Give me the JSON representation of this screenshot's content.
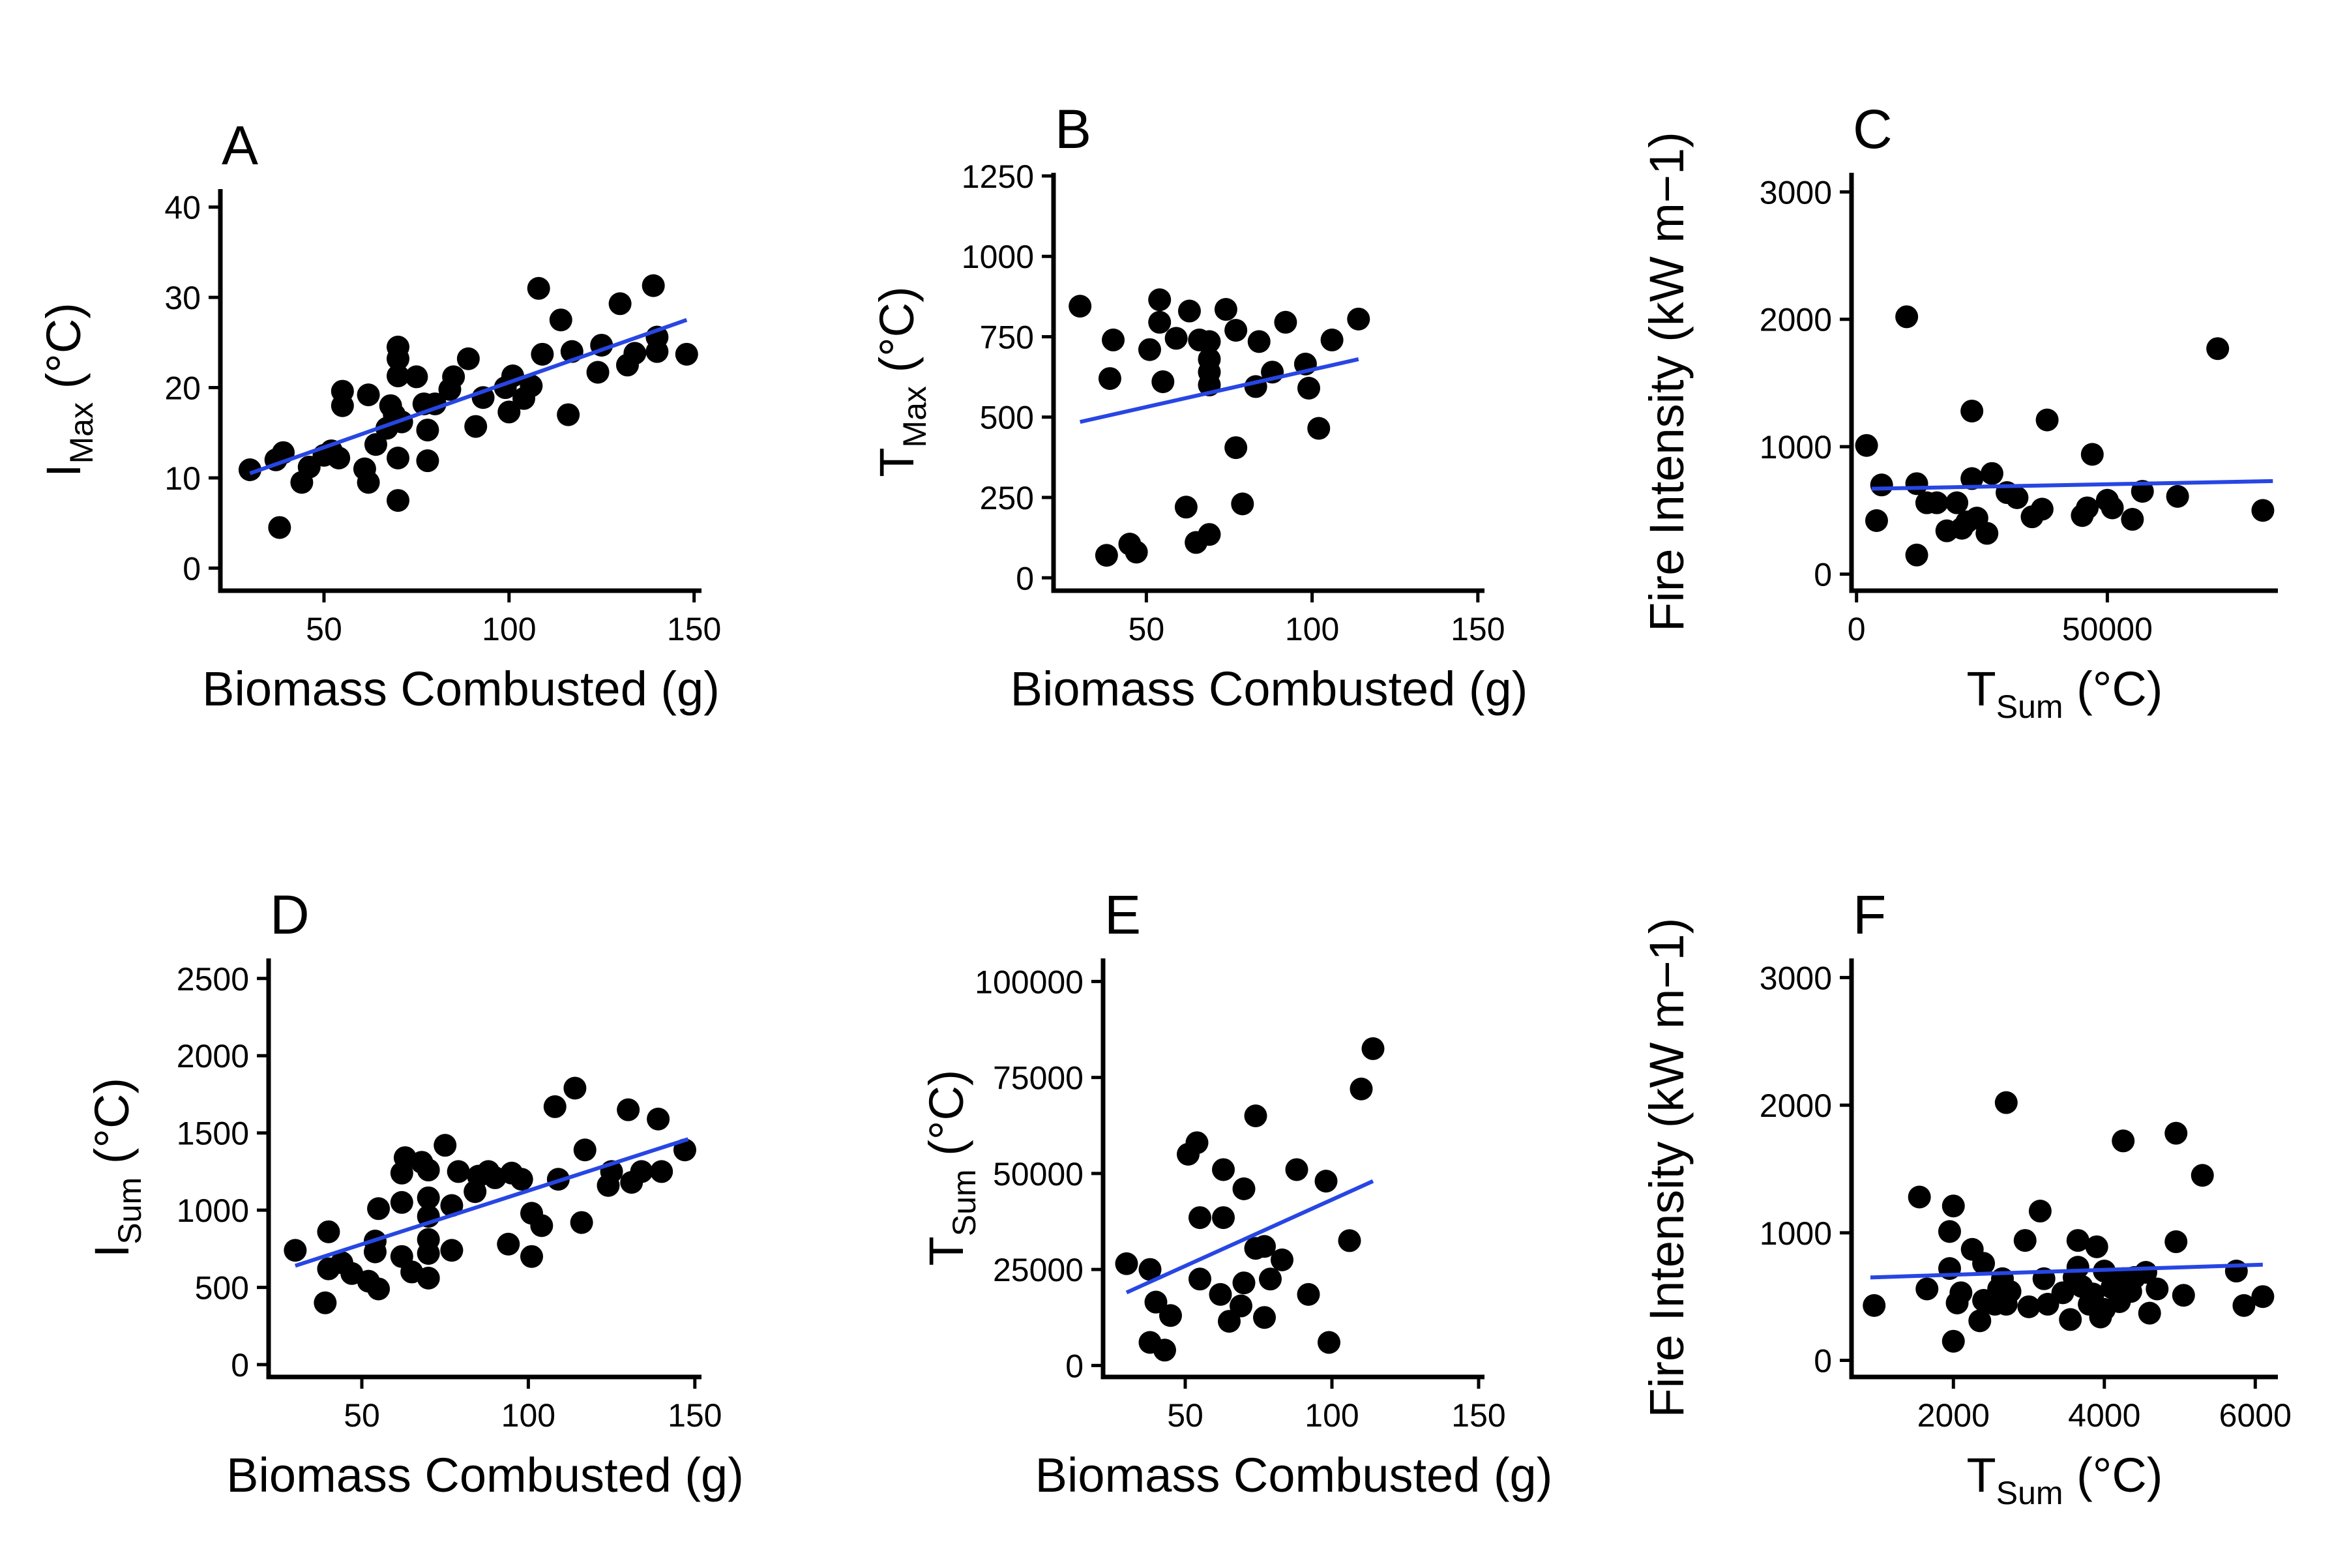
{
  "colors": {
    "points": "#000000",
    "fit_line": "#2746e3",
    "axis": "#000000"
  },
  "chart_data": [
    {
      "panel": "A",
      "type": "scatter",
      "xlabel": "Biomass Combusted (g)",
      "ylabel": {
        "main": "I",
        "sub": "Max",
        "unit": " (°C)"
      },
      "xlim": [
        22,
        152
      ],
      "ylim": [
        -2.5,
        42
      ],
      "xticks": [
        50,
        100,
        150
      ],
      "yticks": [
        0,
        10,
        20,
        30,
        40
      ],
      "fit": [
        [
          30,
          10.5
        ],
        [
          148,
          27.5
        ]
      ],
      "points": [
        [
          30,
          10.9
        ],
        [
          37,
          12
        ],
        [
          38,
          4.5
        ],
        [
          39,
          12.8
        ],
        [
          44,
          9.5
        ],
        [
          46,
          11.2
        ],
        [
          50,
          12.5
        ],
        [
          52,
          13
        ],
        [
          54,
          12.2
        ],
        [
          55,
          18
        ],
        [
          55,
          19.6
        ],
        [
          61,
          11
        ],
        [
          62,
          9.5
        ],
        [
          62,
          19.2
        ],
        [
          64,
          13.7
        ],
        [
          67,
          15.5
        ],
        [
          68,
          18
        ],
        [
          69,
          17
        ],
        [
          70,
          7.5
        ],
        [
          70,
          12.2
        ],
        [
          70,
          21.3
        ],
        [
          70,
          23.2
        ],
        [
          70,
          24.5
        ],
        [
          71,
          16.2
        ],
        [
          75,
          21.2
        ],
        [
          77,
          18.2
        ],
        [
          78,
          11.9
        ],
        [
          78,
          15.3
        ],
        [
          80,
          18.2
        ],
        [
          84,
          19.8
        ],
        [
          85,
          21.2
        ],
        [
          89,
          23.2
        ],
        [
          91,
          15.7
        ],
        [
          93,
          18.9
        ],
        [
          99,
          20
        ],
        [
          100,
          17.3
        ],
        [
          101,
          21.3
        ],
        [
          104,
          18.8
        ],
        [
          106,
          20.2
        ],
        [
          108,
          31
        ],
        [
          109,
          23.7
        ],
        [
          114,
          27.5
        ],
        [
          116,
          17
        ],
        [
          117,
          24
        ],
        [
          124,
          21.7
        ],
        [
          125,
          24.7
        ],
        [
          130,
          29.3
        ],
        [
          132,
          22.5
        ],
        [
          134,
          23.8
        ],
        [
          139,
          31.3
        ],
        [
          140,
          24
        ],
        [
          140,
          25.6
        ],
        [
          148,
          23.7
        ]
      ]
    },
    {
      "panel": "B",
      "type": "scatter",
      "xlabel": "Biomass Combusted (g)",
      "ylabel": {
        "main": "T",
        "sub": "Max",
        "unit": " (°C)"
      },
      "xlim": [
        22,
        152
      ],
      "ylim": [
        -40,
        1260
      ],
      "xticks": [
        50,
        100,
        150
      ],
      "yticks": [
        0,
        250,
        500,
        750,
        1000,
        1250
      ],
      "fit": [
        [
          30,
          485
        ],
        [
          114,
          680
        ]
      ],
      "points": [
        [
          30,
          845
        ],
        [
          38,
          70
        ],
        [
          39,
          620
        ],
        [
          40,
          740
        ],
        [
          45,
          105
        ],
        [
          47,
          80
        ],
        [
          51,
          710
        ],
        [
          54,
          795
        ],
        [
          54,
          865
        ],
        [
          55,
          610
        ],
        [
          59,
          745
        ],
        [
          62,
          220
        ],
        [
          63,
          830
        ],
        [
          65,
          110
        ],
        [
          66,
          740
        ],
        [
          69,
          135
        ],
        [
          69,
          600
        ],
        [
          69,
          640
        ],
        [
          69,
          680
        ],
        [
          69,
          735
        ],
        [
          74,
          835
        ],
        [
          77,
          405
        ],
        [
          77,
          770
        ],
        [
          79,
          230
        ],
        [
          83,
          595
        ],
        [
          84,
          735
        ],
        [
          88,
          640
        ],
        [
          92,
          795
        ],
        [
          98,
          665
        ],
        [
          99,
          590
        ],
        [
          102,
          465
        ],
        [
          106,
          740
        ],
        [
          114,
          805
        ]
      ]
    },
    {
      "panel": "C",
      "type": "scatter",
      "xlabel": {
        "main": "T",
        "sub": "Sum",
        "unit": " (°C)"
      },
      "ylabel": "Fire Intensity (kW m−1)",
      "xlim": [
        -1000,
        84000
      ],
      "ylim": [
        -130,
        3150
      ],
      "xticks": [
        0,
        50000
      ],
      "yticks": [
        0,
        1000,
        2000,
        3000
      ],
      "fit": [
        [
          3000,
          670
        ],
        [
          83000,
          730
        ]
      ],
      "points": [
        [
          2000,
          1010
        ],
        [
          4000,
          420
        ],
        [
          5000,
          700
        ],
        [
          10000,
          2020
        ],
        [
          12000,
          150
        ],
        [
          12000,
          710
        ],
        [
          14000,
          560
        ],
        [
          16000,
          560
        ],
        [
          18000,
          340
        ],
        [
          20000,
          560
        ],
        [
          21000,
          360
        ],
        [
          22000,
          410
        ],
        [
          23000,
          750
        ],
        [
          23000,
          1280
        ],
        [
          24000,
          440
        ],
        [
          26000,
          320
        ],
        [
          27000,
          790
        ],
        [
          30000,
          640
        ],
        [
          32000,
          600
        ],
        [
          35000,
          450
        ],
        [
          37000,
          510
        ],
        [
          38000,
          1210
        ],
        [
          45000,
          460
        ],
        [
          46000,
          520
        ],
        [
          47000,
          940
        ],
        [
          50000,
          580
        ],
        [
          51000,
          520
        ],
        [
          55000,
          430
        ],
        [
          57000,
          650
        ],
        [
          64000,
          610
        ],
        [
          72000,
          1770
        ],
        [
          81000,
          500
        ]
      ]
    },
    {
      "panel": "D",
      "type": "scatter",
      "xlabel": "Biomass Combusted (g)",
      "ylabel": {
        "main": "I",
        "sub": "Sum",
        "unit": " (°C)"
      },
      "xlim": [
        22,
        152
      ],
      "ylim": [
        -80,
        2630
      ],
      "xticks": [
        50,
        100,
        150
      ],
      "yticks": [
        0,
        500,
        1000,
        1500,
        2000,
        2500
      ],
      "fit": [
        [
          30,
          640
        ],
        [
          148,
          1460
        ]
      ],
      "points": [
        [
          30,
          740
        ],
        [
          39,
          400
        ],
        [
          40,
          620
        ],
        [
          40,
          860
        ],
        [
          44,
          660
        ],
        [
          47,
          590
        ],
        [
          52,
          540
        ],
        [
          54,
          730
        ],
        [
          54,
          800
        ],
        [
          55,
          490
        ],
        [
          55,
          1010
        ],
        [
          62,
          700
        ],
        [
          62,
          1050
        ],
        [
          62,
          1240
        ],
        [
          63,
          1340
        ],
        [
          65,
          600
        ],
        [
          68,
          1310
        ],
        [
          70,
          560
        ],
        [
          70,
          720
        ],
        [
          70,
          810
        ],
        [
          70,
          960
        ],
        [
          70,
          1080
        ],
        [
          70,
          1260
        ],
        [
          75,
          1420
        ],
        [
          77,
          740
        ],
        [
          77,
          1030
        ],
        [
          79,
          1250
        ],
        [
          84,
          1120
        ],
        [
          85,
          1220
        ],
        [
          88,
          1250
        ],
        [
          90,
          1210
        ],
        [
          94,
          780
        ],
        [
          95,
          1240
        ],
        [
          98,
          1200
        ],
        [
          101,
          700
        ],
        [
          101,
          980
        ],
        [
          104,
          900
        ],
        [
          108,
          1670
        ],
        [
          109,
          1200
        ],
        [
          114,
          1790
        ],
        [
          116,
          920
        ],
        [
          117,
          1390
        ],
        [
          124,
          1160
        ],
        [
          125,
          1250
        ],
        [
          130,
          1650
        ],
        [
          131,
          1180
        ],
        [
          134,
          1250
        ],
        [
          139,
          1590
        ],
        [
          140,
          1250
        ],
        [
          147,
          1390
        ]
      ]
    },
    {
      "panel": "E",
      "type": "scatter",
      "xlabel": "Biomass Combusted (g)",
      "ylabel": {
        "main": "T",
        "sub": "Sum",
        "unit": " (°C)"
      },
      "xlim": [
        22,
        152
      ],
      "ylim": [
        -3000,
        106000
      ],
      "xticks": [
        50,
        100,
        150
      ],
      "yticks": [
        0,
        25000,
        50000,
        75000,
        100000
      ],
      "fit": [
        [
          30,
          19000
        ],
        [
          114,
          48000
        ]
      ],
      "points": [
        [
          30,
          26500
        ],
        [
          38,
          25000
        ],
        [
          38,
          6000
        ],
        [
          40,
          16500
        ],
        [
          43,
          4000
        ],
        [
          45,
          13000
        ],
        [
          51,
          55000
        ],
        [
          54,
          58000
        ],
        [
          55,
          22500
        ],
        [
          55,
          38500
        ],
        [
          62,
          18500
        ],
        [
          63,
          38500
        ],
        [
          63,
          51000
        ],
        [
          65,
          11500
        ],
        [
          69,
          15500
        ],
        [
          70,
          21500
        ],
        [
          70,
          46000
        ],
        [
          74,
          30500
        ],
        [
          74,
          65000
        ],
        [
          77,
          12500
        ],
        [
          77,
          31000
        ],
        [
          79,
          22500
        ],
        [
          83,
          27500
        ],
        [
          88,
          51000
        ],
        [
          92,
          18500
        ],
        [
          98,
          48000
        ],
        [
          99,
          6000
        ],
        [
          106,
          32500
        ],
        [
          110,
          72000
        ],
        [
          114,
          82500
        ]
      ]
    },
    {
      "panel": "F",
      "type": "scatter",
      "xlabel": {
        "main": "T",
        "sub": "Sum",
        "unit": " (°C)"
      },
      "ylabel": "Fire Intensity (kW m−1)",
      "xlim": [
        650,
        6300
      ],
      "ylim": [
        -130,
        3150
      ],
      "xticks": [
        2000,
        4000,
        6000
      ],
      "yticks": [
        0,
        1000,
        2000,
        3000
      ],
      "fit": [
        [
          900,
          650
        ],
        [
          6100,
          750
        ]
      ],
      "points": [
        [
          950,
          430
        ],
        [
          1550,
          1280
        ],
        [
          1650,
          560
        ],
        [
          1950,
          720
        ],
        [
          1950,
          1010
        ],
        [
          2000,
          150
        ],
        [
          2000,
          1210
        ],
        [
          2050,
          450
        ],
        [
          2100,
          530
        ],
        [
          2250,
          870
        ],
        [
          2350,
          310
        ],
        [
          2400,
          760
        ],
        [
          2400,
          470
        ],
        [
          2550,
          440
        ],
        [
          2600,
          560
        ],
        [
          2650,
          640
        ],
        [
          2700,
          2020
        ],
        [
          2700,
          440
        ],
        [
          2750,
          540
        ],
        [
          2950,
          940
        ],
        [
          3000,
          420
        ],
        [
          3150,
          1170
        ],
        [
          3200,
          640
        ],
        [
          3250,
          440
        ],
        [
          3450,
          530
        ],
        [
          3550,
          320
        ],
        [
          3600,
          650
        ],
        [
          3650,
          730
        ],
        [
          3650,
          940
        ],
        [
          3700,
          580
        ],
        [
          3800,
          440
        ],
        [
          3850,
          520
        ],
        [
          3900,
          890
        ],
        [
          3950,
          340
        ],
        [
          4000,
          400
        ],
        [
          4000,
          700
        ],
        [
          4100,
          570
        ],
        [
          4200,
          460
        ],
        [
          4250,
          640
        ],
        [
          4250,
          1720
        ],
        [
          4350,
          540
        ],
        [
          4400,
          650
        ],
        [
          4550,
          690
        ],
        [
          4600,
          370
        ],
        [
          4700,
          560
        ],
        [
          4950,
          1780
        ],
        [
          4950,
          930
        ],
        [
          5050,
          510
        ],
        [
          5300,
          1450
        ],
        [
          5750,
          700
        ],
        [
          5850,
          430
        ],
        [
          6100,
          500
        ]
      ]
    }
  ]
}
